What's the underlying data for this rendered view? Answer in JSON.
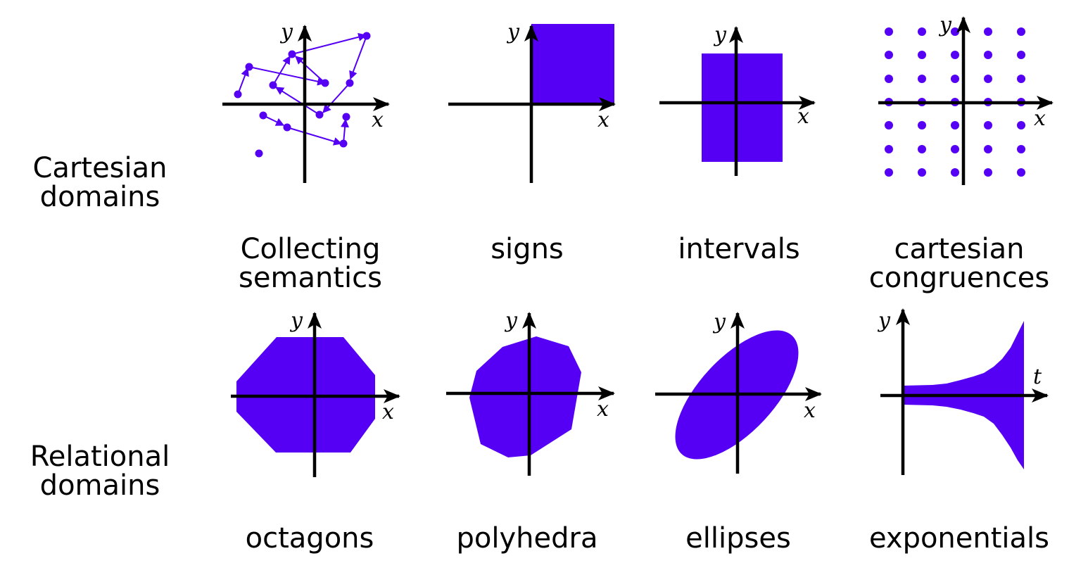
{
  "colors": {
    "shape_fill": "#5500f5",
    "axis": "#000000",
    "background": "#ffffff"
  },
  "rows": [
    {
      "label_lines": [
        "Cartesian",
        "domains"
      ]
    },
    {
      "label_lines": [
        "Relational",
        "domains"
      ]
    }
  ],
  "panels": {
    "collecting": {
      "caption_lines": [
        "Collecting",
        "semantics"
      ],
      "x_label": "x",
      "y_label": "y"
    },
    "signs": {
      "caption_lines": [
        "signs"
      ],
      "x_label": "x",
      "y_label": "y"
    },
    "intervals": {
      "caption_lines": [
        "intervals"
      ],
      "x_label": "x",
      "y_label": "y"
    },
    "congruences": {
      "caption_lines": [
        "cartesian",
        "congruences"
      ],
      "x_label": "x",
      "y_label": "y"
    },
    "octagons": {
      "caption_lines": [
        "octagons"
      ],
      "x_label": "x",
      "y_label": "y"
    },
    "polyhedra": {
      "caption_lines": [
        "polyhedra"
      ],
      "x_label": "x",
      "y_label": "y"
    },
    "ellipses": {
      "caption_lines": [
        "ellipses"
      ],
      "x_label": "x",
      "y_label": "y"
    },
    "exponentials": {
      "caption_lines": [
        "exponentials"
      ],
      "x_label": "t",
      "y_label": "y"
    }
  }
}
